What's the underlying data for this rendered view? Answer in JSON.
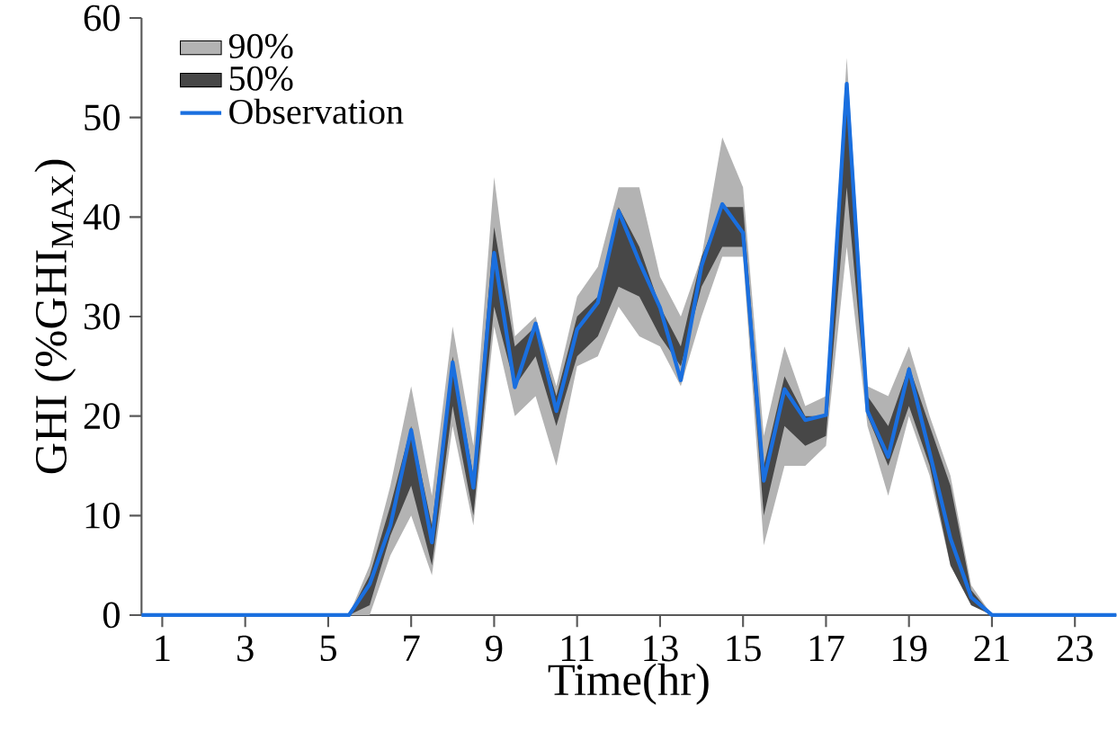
{
  "chart_data": {
    "type": "line",
    "xlabel": "Time(hr)",
    "ylabel": "GHI (%GHI$_{MAX}$)",
    "x": [
      0.5,
      1,
      1.5,
      2,
      2.5,
      3,
      3.5,
      4,
      4.5,
      5,
      5.5,
      6,
      6.5,
      7,
      7.5,
      8,
      8.5,
      9,
      9.5,
      10,
      10.5,
      11,
      11.5,
      12,
      12.5,
      13,
      13.5,
      14,
      14.5,
      15,
      15.5,
      16,
      16.5,
      17,
      17.5,
      18,
      18.5,
      19,
      19.5,
      20,
      20.5,
      21,
      21.5,
      22,
      22.5,
      23,
      23.5,
      24
    ],
    "xlim": [
      0.5,
      24
    ],
    "xticks": [
      1,
      3,
      5,
      7,
      9,
      11,
      13,
      15,
      17,
      19,
      21,
      23
    ],
    "ylim": [
      0,
      60
    ],
    "yticks": [
      0,
      10,
      20,
      30,
      40,
      50,
      60
    ],
    "legend": "top left",
    "marker": "none",
    "line_style": "solid",
    "grid": false,
    "series": [
      {
        "name": "90%",
        "type": "area",
        "color": "#b3b3b3",
        "values": [
          null,
          null,
          null,
          null,
          null,
          null,
          null,
          null,
          null,
          null,
          null,
          null,
          null,
          null,
          null,
          null,
          null,
          null,
          null,
          null,
          null,
          null,
          null,
          null,
          null,
          null,
          null,
          null,
          null,
          null,
          null,
          null,
          null,
          null,
          null,
          null,
          null,
          null,
          null,
          null,
          null,
          null,
          null,
          null,
          null,
          null,
          null,
          null
        ],
        "lower": [
          0,
          0,
          0,
          0,
          0,
          0,
          0,
          0,
          0,
          0,
          0,
          0,
          6,
          10,
          4,
          19,
          9,
          29,
          20,
          22,
          15,
          25,
          26,
          31,
          28,
          27,
          23,
          30,
          36,
          36,
          7,
          15,
          15,
          17,
          37,
          19,
          12,
          20,
          14,
          5,
          1,
          0,
          0,
          0,
          0,
          0,
          0,
          0
        ],
        "upper": [
          0,
          0,
          0,
          0,
          0,
          0,
          0,
          0,
          0,
          0,
          0,
          5,
          13,
          23,
          12,
          29,
          17,
          44,
          28,
          30,
          23,
          32,
          35,
          43,
          43,
          34,
          30,
          36,
          48,
          43,
          18,
          27,
          21,
          22,
          56,
          23,
          22,
          27,
          20,
          14,
          3,
          0,
          0,
          0,
          0,
          0,
          0,
          0
        ]
      },
      {
        "name": "50%",
        "type": "area",
        "color": "#474747",
        "values": [
          null,
          null,
          null,
          null,
          null,
          null,
          null,
          null,
          null,
          null,
          null,
          null,
          null,
          null,
          null,
          null,
          null,
          null,
          null,
          null,
          null,
          null,
          null,
          null,
          null,
          null,
          null,
          null,
          null,
          null,
          null,
          null,
          null,
          null,
          null,
          null,
          null,
          null,
          null,
          null,
          null,
          null,
          null,
          null,
          null,
          null,
          null,
          null
        ],
        "lower": [
          0,
          0,
          0,
          0,
          0,
          0,
          0,
          0,
          0,
          0,
          0,
          1,
          8,
          13,
          5,
          21,
          10,
          31,
          23,
          26,
          19,
          26,
          28,
          33,
          32,
          28,
          25,
          33,
          37,
          37,
          10,
          19,
          17,
          18,
          43,
          20,
          15,
          21,
          15,
          5,
          1,
          0,
          0,
          0,
          0,
          0,
          0,
          0
        ],
        "upper": [
          0,
          0,
          0,
          0,
          0,
          0,
          0,
          0,
          0,
          0,
          0,
          4,
          11,
          19,
          9,
          26,
          14,
          39,
          27,
          29,
          22,
          30,
          32,
          41,
          37,
          31,
          27,
          36,
          41,
          41,
          15,
          24,
          20,
          20,
          52,
          22,
          19,
          25,
          19,
          13,
          2.5,
          0,
          0,
          0,
          0,
          0,
          0,
          0
        ]
      },
      {
        "name": "Observation",
        "color": "#1a6fdf",
        "values": [
          0,
          0,
          0,
          0,
          0,
          0,
          0,
          0,
          0,
          0,
          0,
          3.1,
          9,
          18.6,
          7.3,
          25.4,
          12.8,
          36.4,
          22.9,
          29.3,
          20.5,
          28.7,
          31.4,
          40.6,
          35.5,
          30.9,
          23.6,
          35.1,
          41.3,
          38.4,
          13.5,
          22.7,
          19.6,
          20.1,
          53.4,
          20.5,
          15.9,
          24.7,
          16.3,
          7.7,
          1.8,
          0,
          0,
          0,
          0,
          0,
          0,
          0
        ]
      }
    ]
  }
}
